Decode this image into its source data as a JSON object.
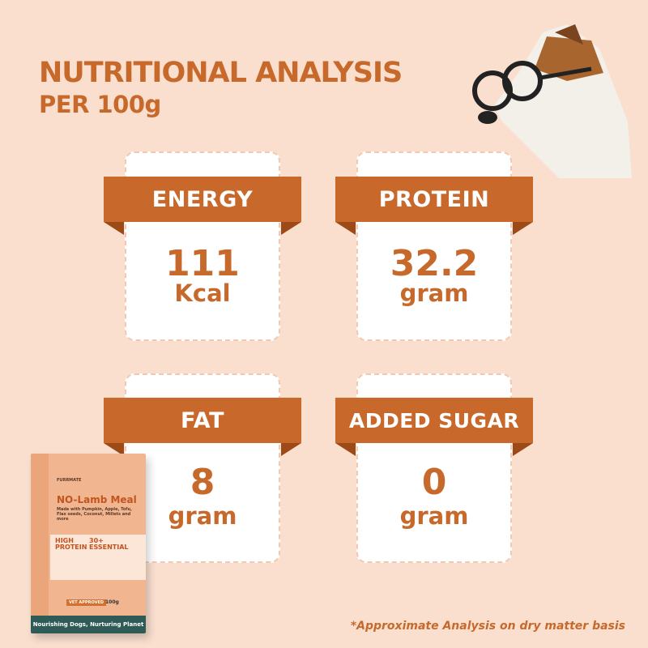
{
  "header": {
    "title": "NUTRITIONAL ANALYSIS",
    "subtitle": "PER 100g"
  },
  "cards": [
    {
      "label": "ENERGY",
      "value": "111",
      "unit": "Kcal"
    },
    {
      "label": "PROTEIN",
      "value": "32.2",
      "unit": "gram"
    },
    {
      "label": "FAT",
      "value": "8",
      "unit": "gram"
    },
    {
      "label": "ADDED SUGAR",
      "value": "0",
      "unit": "gram"
    }
  ],
  "footnote": "*Approximate Analysis on dry matter basis",
  "product": {
    "brand": "FURRMATE",
    "name": "NO-Lamb Meal",
    "desc": "Made with Pumpkin, Apple, Tofu, Flax seeds, Coconut, Millets and more",
    "claim1": "HIGH PROTEIN",
    "claim2": "30+ ESSENTIAL",
    "weight": "100g",
    "badge": "VET APPROVED",
    "tagline": "Nourishing Dogs, Nurturing Planet"
  },
  "colors": {
    "accent": "#c8682a",
    "background": "#fadfcf"
  }
}
